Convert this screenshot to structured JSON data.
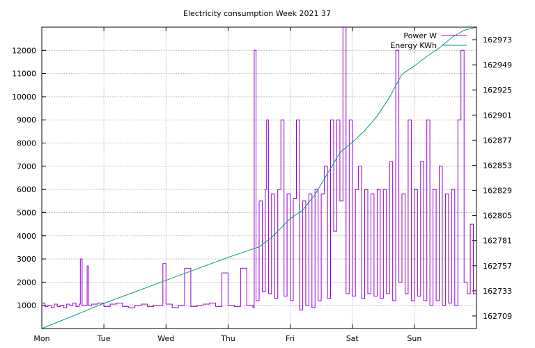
{
  "chart_data": {
    "type": "line",
    "title": "Electricity consumption Week 2021 37",
    "x_tick_labels": [
      "Mon",
      "Tue",
      "Wed",
      "Thu",
      "Fri",
      "Sat",
      "Sun"
    ],
    "xlim_days": [
      0,
      7
    ],
    "y_left": {
      "ticks": [
        1000,
        2000,
        3000,
        4000,
        5000,
        6000,
        7000,
        8000,
        9000,
        10000,
        11000,
        12000
      ],
      "ylim": [
        0,
        13000
      ]
    },
    "y_right": {
      "ticks": [
        162709,
        162733,
        162757,
        162781,
        162805,
        162829,
        162853,
        162877,
        162901,
        162925,
        162949,
        162973
      ],
      "ylim": [
        162697,
        162985
      ]
    },
    "grid": true,
    "legend_position": "top-right",
    "series": [
      {
        "name": "Power W",
        "axis": "left",
        "color": "#9400d3",
        "style": "step",
        "x": [
          0,
          0.05,
          0.1,
          0.15,
          0.2,
          0.25,
          0.3,
          0.35,
          0.4,
          0.45,
          0.5,
          0.55,
          0.6,
          0.62,
          0.65,
          0.7,
          0.73,
          0.75,
          0.8,
          0.9,
          1.0,
          1.1,
          1.2,
          1.3,
          1.4,
          1.5,
          1.6,
          1.7,
          1.8,
          1.95,
          2.0,
          2.1,
          2.2,
          2.3,
          2.4,
          2.5,
          2.6,
          2.7,
          2.8,
          2.9,
          3.0,
          3.1,
          3.2,
          3.3,
          3.4,
          3.42,
          3.45,
          3.5,
          3.55,
          3.6,
          3.62,
          3.65,
          3.7,
          3.75,
          3.8,
          3.85,
          3.9,
          3.95,
          4.0,
          4.05,
          4.1,
          4.15,
          4.2,
          4.25,
          4.3,
          4.35,
          4.4,
          4.45,
          4.5,
          4.55,
          4.6,
          4.65,
          4.7,
          4.75,
          4.8,
          4.85,
          4.9,
          4.95,
          5.0,
          5.05,
          5.1,
          5.15,
          5.2,
          5.25,
          5.3,
          5.35,
          5.4,
          5.45,
          5.5,
          5.55,
          5.6,
          5.65,
          5.7,
          5.75,
          5.8,
          5.85,
          5.9,
          5.95,
          6.0,
          6.05,
          6.1,
          6.15,
          6.2,
          6.25,
          6.3,
          6.35,
          6.4,
          6.45,
          6.5,
          6.55,
          6.6,
          6.65,
          6.7,
          6.75,
          6.8,
          6.85,
          6.9,
          6.95,
          7.0
        ],
        "y": [
          1100,
          950,
          1000,
          900,
          1050,
          950,
          1000,
          900,
          1050,
          1000,
          1100,
          950,
          1050,
          3000,
          1000,
          1000,
          2700,
          1000,
          1050,
          1100,
          950,
          1050,
          1100,
          950,
          900,
          1000,
          1050,
          950,
          1000,
          2800,
          1050,
          900,
          1000,
          2600,
          950,
          1000,
          1050,
          1100,
          950,
          2400,
          1000,
          950,
          2600,
          1000,
          900,
          12000,
          1200,
          5500,
          1600,
          6000,
          9000,
          1500,
          5800,
          1300,
          6000,
          9000,
          1400,
          5800,
          1200,
          5600,
          9000,
          800,
          5500,
          1000,
          5800,
          900,
          6000,
          1200,
          5800,
          7000,
          1300,
          9000,
          4200,
          9000,
          5500,
          13000,
          1500,
          9000,
          1400,
          6000,
          7000,
          1300,
          6000,
          1500,
          5800,
          1400,
          6000,
          1300,
          6000,
          1500,
          7200,
          1200,
          12000,
          2000,
          5800,
          1500,
          9000,
          1200,
          6000,
          1400,
          7200,
          1200,
          9000,
          1000,
          6000,
          1200,
          7000,
          1000,
          5800,
          1100,
          6000,
          1000,
          9000,
          12000,
          2000,
          1500,
          4500,
          1500,
          2500
        ]
      },
      {
        "name": "Energy KWh",
        "axis": "right",
        "color": "#009e73",
        "style": "line",
        "x": [
          0,
          0.5,
          1.0,
          1.5,
          2.0,
          2.5,
          3.0,
          3.5,
          3.7,
          4.0,
          4.2,
          4.4,
          4.6,
          4.8,
          5.0,
          5.2,
          5.4,
          5.6,
          5.8,
          6.0,
          6.2,
          6.4,
          6.6,
          6.8,
          7.0
        ],
        "y": [
          162697,
          162709,
          162721,
          162732,
          162743,
          162754,
          162765,
          162775,
          162784,
          162802,
          162810,
          162825,
          162845,
          162865,
          162875,
          162886,
          162900,
          162918,
          162940,
          162948,
          162957,
          162965,
          162975,
          162982,
          162985
        ]
      }
    ]
  }
}
